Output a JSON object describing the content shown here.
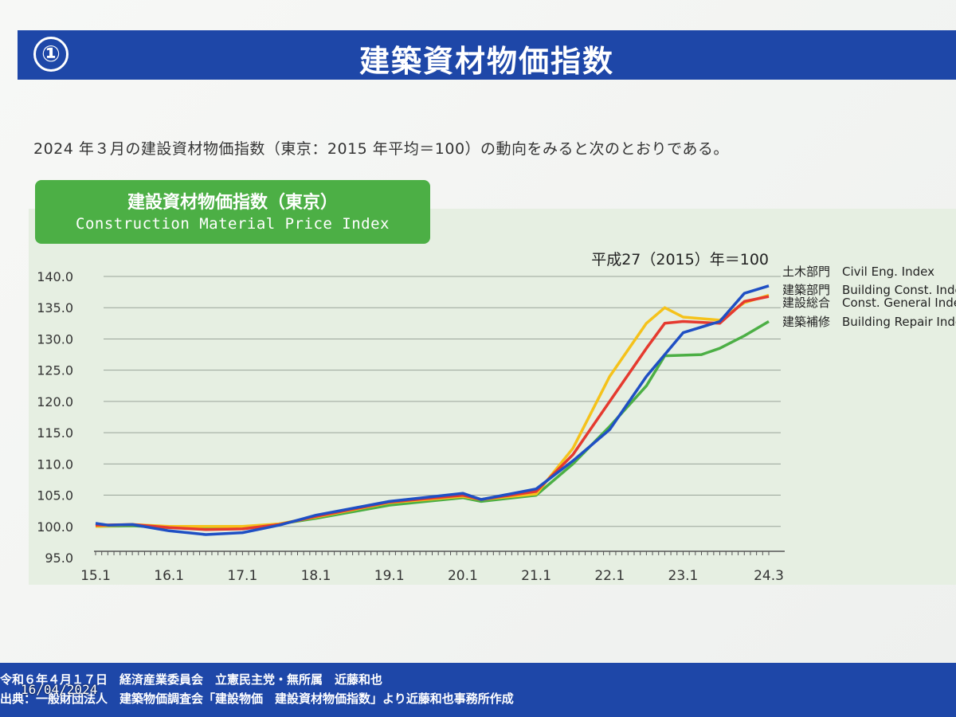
{
  "header": {
    "number": "①",
    "title": "建築資材物価指数"
  },
  "intro": "2024 年３月の建設資材物価指数（東京：2015 年平均＝100）の動向をみると次のとおりである。",
  "chart_label": {
    "jp": "建設資材物価指数（東京）",
    "en": "Construction Material Price Index"
  },
  "chart_data": {
    "type": "line",
    "note": "平成27（2015）年＝100",
    "ylim": [
      95,
      140
    ],
    "yticks": [
      "95.0",
      "100.0",
      "105.0",
      "110.0",
      "115.0",
      "120.0",
      "125.0",
      "130.0",
      "135.0",
      "140.0"
    ],
    "xticks": [
      {
        "label": "15.1",
        "t": 0
      },
      {
        "label": "16.1",
        "t": 12
      },
      {
        "label": "17.1",
        "t": 24
      },
      {
        "label": "18.1",
        "t": 36
      },
      {
        "label": "19.1",
        "t": 48
      },
      {
        "label": "20.1",
        "t": 60
      },
      {
        "label": "21.1",
        "t": 72
      },
      {
        "label": "22.1",
        "t": 84
      },
      {
        "label": "23.1",
        "t": 96
      },
      {
        "label": "24.3",
        "t": 110
      }
    ],
    "series": [
      {
        "name": "土木部門　Civil Eng. Index",
        "color": "#1f4fc4",
        "points": [
          [
            0,
            100.5
          ],
          [
            2,
            100.2
          ],
          [
            6,
            100.3
          ],
          [
            12,
            99.3
          ],
          [
            18,
            98.7
          ],
          [
            24,
            99.0
          ],
          [
            30,
            100.2
          ],
          [
            36,
            101.8
          ],
          [
            48,
            104.0
          ],
          [
            60,
            105.3
          ],
          [
            63,
            104.3
          ],
          [
            72,
            106.0
          ],
          [
            78,
            110.5
          ],
          [
            84,
            115.5
          ],
          [
            90,
            124.0
          ],
          [
            96,
            131.0
          ],
          [
            102,
            132.8
          ],
          [
            106,
            137.3
          ],
          [
            110,
            138.5
          ]
        ]
      },
      {
        "name": "建築部門　Building Const. Index",
        "color": "#f5c21b",
        "points": [
          [
            0,
            100.0
          ],
          [
            6,
            100.3
          ],
          [
            12,
            100.0
          ],
          [
            18,
            100.0
          ],
          [
            24,
            100.0
          ],
          [
            30,
            100.4
          ],
          [
            36,
            101.5
          ],
          [
            48,
            103.8
          ],
          [
            60,
            104.8
          ],
          [
            63,
            104.3
          ],
          [
            72,
            105.2
          ],
          [
            78,
            112.5
          ],
          [
            84,
            124.0
          ],
          [
            90,
            132.5
          ],
          [
            93,
            135.0
          ],
          [
            96,
            133.5
          ],
          [
            102,
            133.0
          ],
          [
            106,
            135.8
          ],
          [
            110,
            137.0
          ]
        ]
      },
      {
        "name": "建設総合　Const. General Index",
        "color": "#e53a2f",
        "points": [
          [
            0,
            100.2
          ],
          [
            6,
            100.3
          ],
          [
            12,
            99.8
          ],
          [
            18,
            99.5
          ],
          [
            24,
            99.6
          ],
          [
            30,
            100.3
          ],
          [
            36,
            101.6
          ],
          [
            48,
            103.9
          ],
          [
            60,
            105.0
          ],
          [
            63,
            104.3
          ],
          [
            72,
            105.6
          ],
          [
            78,
            111.5
          ],
          [
            84,
            120.0
          ],
          [
            90,
            128.5
          ],
          [
            93,
            132.5
          ],
          [
            96,
            132.8
          ],
          [
            102,
            132.5
          ],
          [
            106,
            136.0
          ],
          [
            110,
            136.8
          ]
        ]
      },
      {
        "name": "建築補修　Building Repair Index",
        "color": "#4caf45",
        "points": [
          [
            0,
            100.0
          ],
          [
            6,
            100.1
          ],
          [
            12,
            99.8
          ],
          [
            18,
            99.8
          ],
          [
            24,
            99.8
          ],
          [
            30,
            100.4
          ],
          [
            36,
            101.3
          ],
          [
            48,
            103.4
          ],
          [
            60,
            104.6
          ],
          [
            63,
            104.0
          ],
          [
            72,
            105.0
          ],
          [
            78,
            110.0
          ],
          [
            84,
            116.0
          ],
          [
            90,
            122.5
          ],
          [
            93,
            127.3
          ],
          [
            99,
            127.5
          ],
          [
            102,
            128.5
          ],
          [
            106,
            130.5
          ],
          [
            110,
            132.8
          ]
        ]
      }
    ]
  },
  "footer": {
    "line1": "令和６年４月１７日　経済産業委員会　立憲民主党・無所属　近藤和也",
    "line2": "出典：一般財団法人　建築物価調査会「建設物価　建設資材物価指数」より近藤和也事務所作成"
  },
  "timestamp": "16/04/2024"
}
